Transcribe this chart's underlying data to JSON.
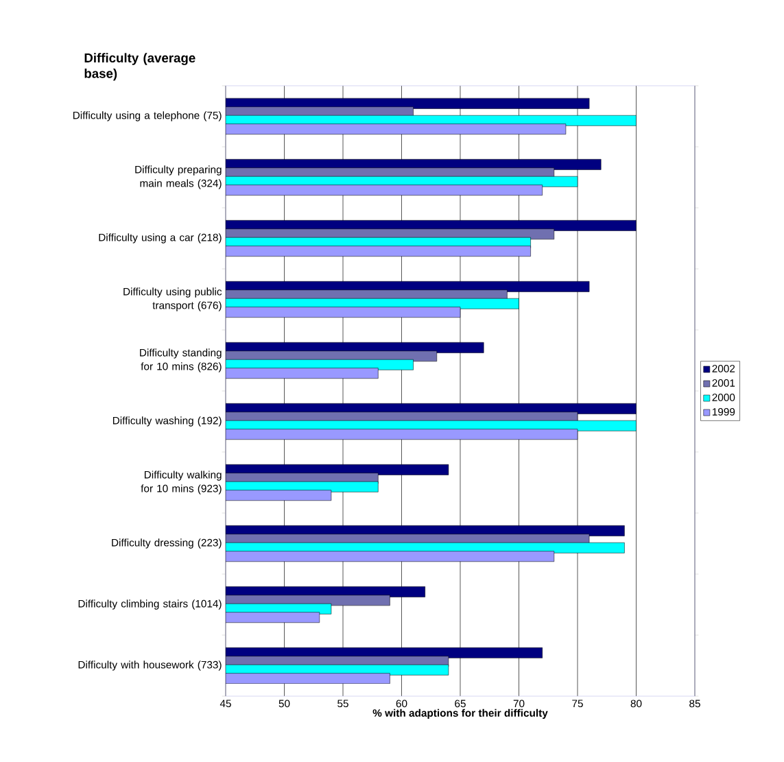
{
  "chart_data": {
    "type": "bar",
    "orientation": "horizontal",
    "title": "Difficulty (average base)",
    "xlabel": "% with adaptions for their difficulty",
    "categories": [
      "Difficulty using a telephone (75)",
      "Difficulty preparing main meals (324)",
      "Difficulty using a car (218)",
      "Difficulty using public transport (676)",
      "Difficulty standing for 10 mins (826)",
      "Difficulty washing (192)",
      "Difficulty walking for 10 mins (923)",
      "Difficulty dressing (223)",
      "Difficulty climbing stairs (1014)",
      "Difficulty with housework (733)"
    ],
    "series": [
      {
        "name": "2002",
        "color": "#000080",
        "values": [
          76,
          77,
          80,
          76,
          67,
          80,
          64,
          79,
          62,
          72
        ]
      },
      {
        "name": "2001",
        "color": "#7070b0",
        "values": [
          61,
          73,
          73,
          69,
          63,
          75,
          58,
          76,
          59,
          64
        ]
      },
      {
        "name": "2000",
        "color": "#00ffff",
        "values": [
          80,
          75,
          71,
          70,
          61,
          80,
          58,
          79,
          54,
          64
        ]
      },
      {
        "name": "1999",
        "color": "#9999ff",
        "values": [
          74,
          72,
          71,
          65,
          58,
          75,
          54,
          73,
          53,
          59
        ]
      }
    ],
    "xlim": [
      45,
      85
    ],
    "xticks": [
      45,
      50,
      55,
      60,
      65,
      70,
      75,
      80,
      85
    ],
    "grid": "x",
    "legend": "right"
  }
}
